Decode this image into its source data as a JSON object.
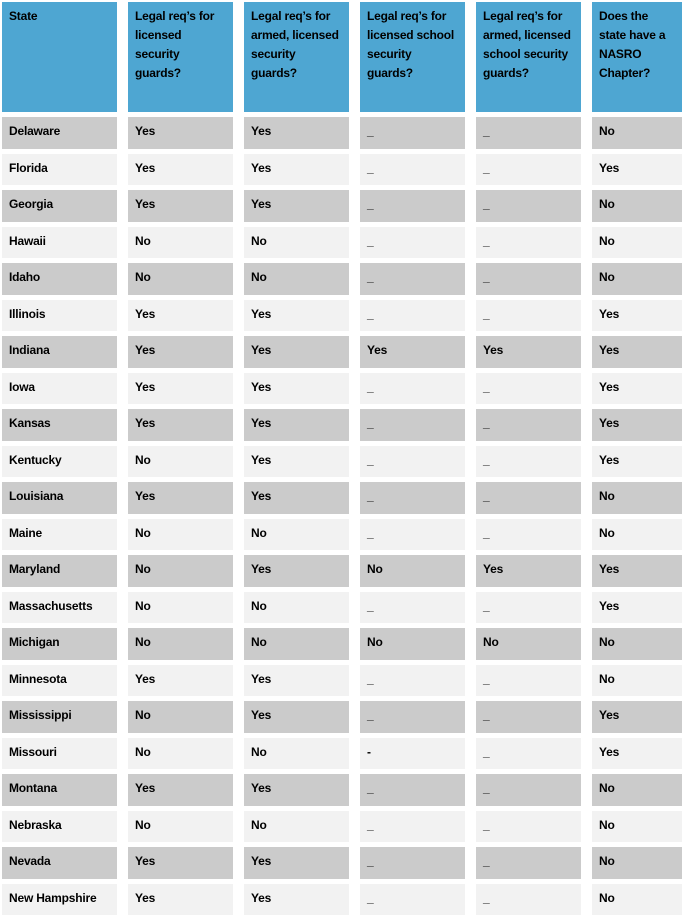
{
  "colors": {
    "header_bg": "#4EA6D2",
    "row_dark_bg": "#CBCBCB",
    "row_light_bg": "#F2F2F2",
    "text": "#000000"
  },
  "table": {
    "columns": [
      {
        "label": "State"
      },
      {
        "label": "Legal req’s for licensed security guards?"
      },
      {
        "label": "Legal req’s for armed, licensed security guards?"
      },
      {
        "label": "Legal req’s for licensed school security guards?"
      },
      {
        "label": "Legal req’s for armed, licensed school security guards?"
      },
      {
        "label": "Does the state have a NASRO Chapter?"
      }
    ],
    "rows": [
      {
        "state": "Delaware",
        "values": [
          "Yes",
          "Yes",
          "_",
          "_",
          "No"
        ]
      },
      {
        "state": "Florida",
        "values": [
          "Yes",
          "Yes",
          "_",
          "_",
          "Yes"
        ]
      },
      {
        "state": "Georgia",
        "values": [
          "Yes",
          "Yes",
          "_",
          "_",
          "No"
        ]
      },
      {
        "state": "Hawaii",
        "values": [
          "No",
          "No",
          "_",
          "_",
          "No"
        ]
      },
      {
        "state": "Idaho",
        "values": [
          "No",
          "No",
          "_",
          "_",
          "No"
        ]
      },
      {
        "state": "Illinois",
        "values": [
          "Yes",
          "Yes",
          "_",
          "_",
          "Yes"
        ]
      },
      {
        "state": "Indiana",
        "values": [
          "Yes",
          "Yes",
          "Yes",
          "Yes",
          "Yes"
        ]
      },
      {
        "state": "Iowa",
        "values": [
          "Yes",
          "Yes",
          "_",
          "_",
          "Yes"
        ]
      },
      {
        "state": "Kansas",
        "values": [
          "Yes",
          "Yes",
          "_",
          "_",
          "Yes"
        ]
      },
      {
        "state": "Kentucky",
        "values": [
          "No",
          "Yes",
          "_",
          "_",
          "Yes"
        ]
      },
      {
        "state": "Louisiana",
        "values": [
          "Yes",
          "Yes",
          "_",
          "_",
          "No"
        ]
      },
      {
        "state": "Maine",
        "values": [
          "No",
          "No",
          "_",
          "_",
          "No"
        ]
      },
      {
        "state": "Maryland",
        "values": [
          "No",
          "Yes",
          "No",
          "Yes",
          "Yes"
        ]
      },
      {
        "state": "Massachusetts",
        "values": [
          "No",
          "No",
          "_",
          "_",
          "Yes"
        ]
      },
      {
        "state": "Michigan",
        "values": [
          "No",
          "No",
          "No",
          "No",
          "No"
        ]
      },
      {
        "state": "Minnesota",
        "values": [
          "Yes",
          "Yes",
          "_",
          "_",
          "No"
        ]
      },
      {
        "state": "Mississippi",
        "values": [
          "No",
          "Yes",
          "_",
          "_",
          "Yes"
        ]
      },
      {
        "state": "Missouri",
        "values": [
          "No",
          "No",
          "-",
          "_",
          "Yes"
        ]
      },
      {
        "state": "Montana",
        "values": [
          "Yes",
          "Yes",
          "_",
          "_",
          "No"
        ]
      },
      {
        "state": "Nebraska",
        "values": [
          "No",
          "No",
          "_",
          "_",
          "No"
        ]
      },
      {
        "state": "Nevada",
        "values": [
          "Yes",
          "Yes",
          "_",
          "_",
          "No"
        ]
      },
      {
        "state": "New Hampshire",
        "values": [
          "Yes",
          "Yes",
          "_",
          "_",
          "No"
        ]
      }
    ]
  },
  "chart_data": {
    "type": "table",
    "title": "State legal requirements for security guards and NASRO chapters",
    "columns": [
      "State",
      "Legal req’s for licensed security guards?",
      "Legal req’s for armed, licensed security guards?",
      "Legal req’s for licensed school security guards?",
      "Legal req’s for armed, licensed school security guards?",
      "Does the state have a NASRO Chapter?"
    ],
    "rows": [
      [
        "Delaware",
        "Yes",
        "Yes",
        "_",
        "_",
        "No"
      ],
      [
        "Florida",
        "Yes",
        "Yes",
        "_",
        "_",
        "Yes"
      ],
      [
        "Georgia",
        "Yes",
        "Yes",
        "_",
        "_",
        "No"
      ],
      [
        "Hawaii",
        "No",
        "No",
        "_",
        "_",
        "No"
      ],
      [
        "Idaho",
        "No",
        "No",
        "_",
        "_",
        "No"
      ],
      [
        "Illinois",
        "Yes",
        "Yes",
        "_",
        "_",
        "Yes"
      ],
      [
        "Indiana",
        "Yes",
        "Yes",
        "Yes",
        "Yes",
        "Yes"
      ],
      [
        "Iowa",
        "Yes",
        "Yes",
        "_",
        "_",
        "Yes"
      ],
      [
        "Kansas",
        "Yes",
        "Yes",
        "_",
        "_",
        "Yes"
      ],
      [
        "Kentucky",
        "No",
        "Yes",
        "_",
        "_",
        "Yes"
      ],
      [
        "Louisiana",
        "Yes",
        "Yes",
        "_",
        "_",
        "No"
      ],
      [
        "Maine",
        "No",
        "No",
        "_",
        "_",
        "No"
      ],
      [
        "Maryland",
        "No",
        "Yes",
        "No",
        "Yes",
        "Yes"
      ],
      [
        "Massachusetts",
        "No",
        "No",
        "_",
        "_",
        "Yes"
      ],
      [
        "Michigan",
        "No",
        "No",
        "No",
        "No",
        "No"
      ],
      [
        "Minnesota",
        "Yes",
        "Yes",
        "_",
        "_",
        "No"
      ],
      [
        "Mississippi",
        "No",
        "Yes",
        "_",
        "_",
        "Yes"
      ],
      [
        "Missouri",
        "No",
        "No",
        "-",
        "_",
        "Yes"
      ],
      [
        "Montana",
        "Yes",
        "Yes",
        "_",
        "_",
        "No"
      ],
      [
        "Nebraska",
        "No",
        "No",
        "_",
        "_",
        "No"
      ],
      [
        "Nevada",
        "Yes",
        "Yes",
        "_",
        "_",
        "No"
      ],
      [
        "New Hampshire",
        "Yes",
        "Yes",
        "_",
        "_",
        "No"
      ]
    ],
    "layout": {
      "header_background": "#4EA6D2",
      "alternating_row_backgrounds": [
        "#CBCBCB",
        "#F2F2F2"
      ],
      "first_data_row_background": "#CBCBCB"
    }
  }
}
